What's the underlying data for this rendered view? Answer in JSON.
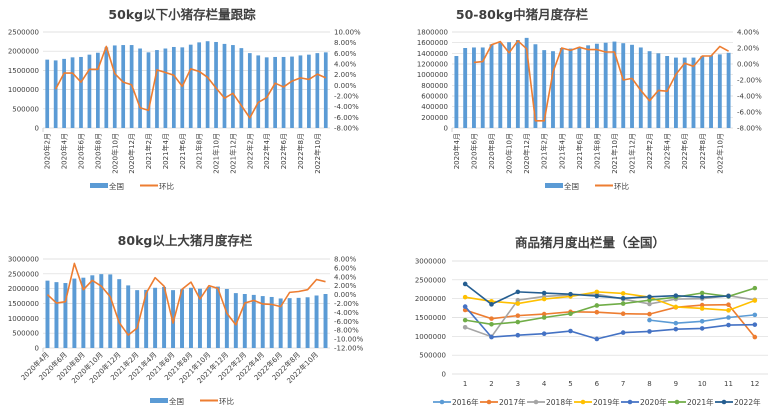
{
  "chart_data": [
    {
      "type": "bar+line",
      "title": "50kg以下小猪存栏量跟踪",
      "x_tick_labels": [
        "2020年2月",
        "2020年4月",
        "2020年6月",
        "2020年8月",
        "2020年10月",
        "2020年12月",
        "2021年2月",
        "2021年4月",
        "2021年6月",
        "2021年8月",
        "2021年10月",
        "2021年12月",
        "2022年2月",
        "2022年4月",
        "2022年6月",
        "2022年8月",
        "2022年10月"
      ],
      "period": "2020年2月 – 2022年11月 (monthly)",
      "left_axis": {
        "min": 0,
        "max": 2500000,
        "step": 500000,
        "labels": [
          "0",
          "500000",
          "1000000",
          "1500000",
          "2000000",
          "2500000"
        ]
      },
      "right_axis": {
        "min": -8,
        "max": 10,
        "step": 2,
        "labels": [
          "-8.00%",
          "-6.00%",
          "-4.00%",
          "-2.00%",
          "0.00%",
          "2.00%",
          "4.00%",
          "6.00%",
          "8.00%",
          "10.00%"
        ]
      },
      "series": [
        {
          "name": "全国",
          "type": "bar",
          "axis": "left",
          "color": "#5b9bd5",
          "start_index": 0,
          "values": [
            1780000,
            1760000,
            1800000,
            1840000,
            1850000,
            1910000,
            1960000,
            2100000,
            2150000,
            2160000,
            2160000,
            2070000,
            1970000,
            2030000,
            2070000,
            2110000,
            2100000,
            2170000,
            2230000,
            2260000,
            2240000,
            2190000,
            2160000,
            2080000,
            1950000,
            1890000,
            1840000,
            1850000,
            1850000,
            1860000,
            1890000,
            1910000,
            1950000,
            1970000
          ]
        },
        {
          "name": "环比",
          "type": "line",
          "axis": "right",
          "unit": "%",
          "color": "#ed7d31",
          "start_index": 1,
          "values": [
            -0.7,
            2.3,
            2.3,
            0.6,
            3.0,
            3.0,
            7.3,
            2.2,
            0.6,
            0.1,
            -4.2,
            -4.7,
            2.9,
            2.4,
            1.9,
            -0.2,
            3.1,
            2.6,
            1.5,
            -0.5,
            -2.4,
            -1.5,
            -3.8,
            -6.1,
            -3.2,
            -2.3,
            0.4,
            -0.3,
            0.8,
            1.4,
            1.1,
            2.1,
            1.4
          ]
        }
      ],
      "legend": "bottom",
      "grid": true
    },
    {
      "type": "bar+line",
      "title": "50-80kg中猪月度存栏",
      "x_tick_labels": [
        "2020年4月",
        "2020年6月",
        "2020年8月",
        "2020年10月",
        "2020年12月",
        "2021年2月",
        "2021年4月",
        "2021年6月",
        "2021年8月",
        "2021年10月",
        "2021年12月",
        "2022年2月",
        "2022年4月",
        "2022年6月",
        "2022年8月",
        "2022年10月"
      ],
      "period": "2020年4月 – 2022年11月 (monthly)",
      "left_axis": {
        "min": 0,
        "max": 1800000,
        "step": 200000,
        "labels": [
          "0",
          "200000",
          "400000",
          "600000",
          "800000",
          "1000000",
          "1200000",
          "1400000",
          "1600000",
          "1800000"
        ]
      },
      "right_axis": {
        "min": -8,
        "max": 4,
        "step": 2,
        "labels": [
          "-8.00%",
          "-6.00%",
          "-4.00%",
          "-2.00%",
          "0.00%",
          "2.00%",
          "4.00%"
        ]
      },
      "series": [
        {
          "name": "全国",
          "type": "bar",
          "axis": "left",
          "color": "#5b9bd5",
          "start_index": 0,
          "values": [
            1350000,
            1500000,
            1510000,
            1510000,
            1570000,
            1600000,
            1610000,
            1650000,
            1690000,
            1570000,
            1460000,
            1440000,
            1500000,
            1490000,
            1520000,
            1550000,
            1580000,
            1600000,
            1620000,
            1590000,
            1560000,
            1510000,
            1440000,
            1400000,
            1350000,
            1320000,
            1320000,
            1320000,
            1350000,
            1360000,
            1380000,
            1410000
          ]
        },
        {
          "name": "环比",
          "type": "line",
          "axis": "right",
          "unit": "%",
          "color": "#ed7d31",
          "start_index": 2,
          "values": [
            0.2,
            0.3,
            2.4,
            2.8,
            1.4,
            2.9,
            1.9,
            -7.1,
            -7.1,
            -1.0,
            2.0,
            1.7,
            2.1,
            1.8,
            1.8,
            1.5,
            1.5,
            -2.0,
            -1.8,
            -3.3,
            -4.6,
            -3.3,
            -3.4,
            -1.3,
            0.1,
            -0.3,
            1.0,
            1.0,
            2.2,
            1.6
          ]
        }
      ],
      "legend": "bottom",
      "grid": true
    },
    {
      "type": "bar+line",
      "title": "80kg以上大猪月度存栏",
      "x_tick_labels": [
        "2020年4月",
        "2020年6月",
        "2020年8月",
        "2020年10月",
        "2020年12月",
        "2021年2月",
        "2021年4月",
        "2021年6月",
        "2021年8月",
        "2021年10月",
        "2021年12月",
        "2022年2月",
        "2022年4月",
        "2022年6月",
        "2022年8月",
        "2022年10月"
      ],
      "period": "2020年4月 – 2022年11月 (monthly)",
      "left_axis": {
        "min": 0,
        "max": 3000000,
        "step": 500000,
        "labels": [
          "0",
          "500000",
          "1000000",
          "1500000",
          "2000000",
          "2500000",
          "3000000"
        ]
      },
      "right_axis": {
        "min": -12,
        "max": 8,
        "step": 2,
        "labels": [
          "-12.00%",
          "-10.00%",
          "-8.00%",
          "-6.00%",
          "-4.00%",
          "-2.00%",
          "0.00%",
          "2.00%",
          "4.00%",
          "6.00%",
          "8.00%"
        ]
      },
      "series": [
        {
          "name": "全国",
          "type": "bar",
          "axis": "left",
          "color": "#5b9bd5",
          "start_index": 0,
          "values": [
            2270000,
            2220000,
            2190000,
            2340000,
            2370000,
            2450000,
            2490000,
            2480000,
            2320000,
            2110000,
            1950000,
            1960000,
            2030000,
            2060000,
            1950000,
            1980000,
            2030000,
            2000000,
            2060000,
            2070000,
            1990000,
            1850000,
            1820000,
            1790000,
            1750000,
            1720000,
            1670000,
            1680000,
            1690000,
            1710000,
            1770000,
            1820000
          ]
        },
        {
          "name": "环比",
          "type": "line",
          "axis": "right",
          "unit": "%",
          "color": "#ed7d31",
          "start_index": 0,
          "values": [
            0.0,
            -1.9,
            -1.6,
            7.0,
            1.1,
            3.2,
            1.9,
            -0.5,
            -6.3,
            -9.1,
            -7.5,
            0.3,
            3.8,
            1.9,
            -6.4,
            1.2,
            2.8,
            -1.0,
            2.0,
            1.4,
            -4.2,
            -6.8,
            -1.9,
            -1.3,
            -2.1,
            -2.2,
            -2.7,
            0.5,
            0.7,
            1.1,
            3.4,
            2.9
          ]
        }
      ],
      "legend": "bottom",
      "grid": true
    },
    {
      "type": "line",
      "title": "商品猪月度出栏量（全国）",
      "categories": [
        "1",
        "2",
        "3",
        "4",
        "5",
        "6",
        "7",
        "8",
        "9",
        "10",
        "11",
        "12"
      ],
      "y_axis": {
        "min": 0,
        "max": 3000000,
        "step": 500000,
        "labels": [
          "0",
          "500000",
          "1000000",
          "1500000",
          "2000000",
          "2500000",
          "3000000"
        ]
      },
      "series": [
        {
          "name": "2016年",
          "color": "#5b9bd5",
          "values": [
            null,
            null,
            null,
            null,
            null,
            null,
            null,
            1430000,
            1350000,
            1400000,
            1500000,
            1570000
          ]
        },
        {
          "name": "2017年",
          "color": "#ed7d31",
          "values": [
            1700000,
            1470000,
            1550000,
            1590000,
            1650000,
            1640000,
            1600000,
            1590000,
            1770000,
            1830000,
            1840000,
            980000
          ]
        },
        {
          "name": "2018年",
          "color": "#a5a5a5",
          "values": [
            1240000,
            990000,
            1960000,
            2060000,
            2100000,
            2120000,
            1990000,
            1860000,
            1990000,
            2000000,
            2080000,
            1970000
          ]
        },
        {
          "name": "2019年",
          "color": "#ffc000",
          "values": [
            2040000,
            1930000,
            1870000,
            1990000,
            2060000,
            2180000,
            2140000,
            2040000,
            1780000,
            1740000,
            1690000,
            1950000
          ]
        },
        {
          "name": "2020年",
          "color": "#4472c4",
          "values": [
            1790000,
            980000,
            1030000,
            1070000,
            1140000,
            930000,
            1100000,
            1130000,
            1190000,
            1210000,
            1300000,
            1310000
          ]
        },
        {
          "name": "2021年",
          "color": "#70ad47",
          "values": [
            1430000,
            1320000,
            1380000,
            1500000,
            1600000,
            1820000,
            1870000,
            1960000,
            2040000,
            2150000,
            2060000,
            2280000
          ]
        },
        {
          "name": "2022年",
          "color": "#255e91",
          "values": [
            2390000,
            1850000,
            2180000,
            2150000,
            2120000,
            2070000,
            2010000,
            2050000,
            2080000,
            2040000,
            2070000,
            null
          ]
        }
      ],
      "legend": "bottom",
      "grid": true
    }
  ]
}
